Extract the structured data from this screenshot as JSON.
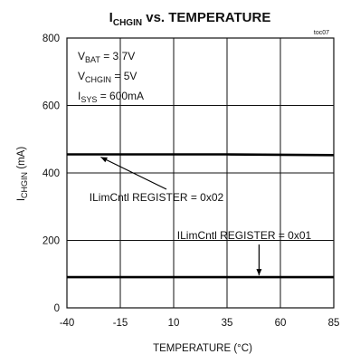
{
  "chart_data": {
    "type": "line",
    "title": {
      "main": "I",
      "sub": "CHGIN",
      "rest": " vs. TEMPERATURE"
    },
    "figure_code": "toc07",
    "xlabel": "TEMPERATURE (°C)",
    "ylabel": {
      "main": "I",
      "sub": "CHGIN",
      "rest": " (mA)"
    },
    "xlim": [
      -40,
      85
    ],
    "ylim": [
      0,
      800
    ],
    "x_ticks": [
      -40,
      -15,
      10,
      35,
      60,
      85
    ],
    "y_ticks": [
      0,
      200,
      400,
      600,
      800
    ],
    "x_tick_labels": [
      "-40",
      "-15",
      "10",
      "35",
      "60",
      "85"
    ],
    "y_tick_labels": [
      "0",
      "200",
      "400",
      "600",
      "800"
    ],
    "grid": true,
    "conditions": [
      {
        "main": "V",
        "sub": "BAT",
        "rest": " = 3.7V"
      },
      {
        "main": "V",
        "sub": "CHGIN",
        "rest": " = 5V"
      },
      {
        "main": "I",
        "sub": "SYS",
        "rest": " = 600mA"
      }
    ],
    "series": [
      {
        "name": "ILimCntl REGISTER = 0x02",
        "x": [
          -40,
          -15,
          10,
          35,
          60,
          85
        ],
        "y": [
          455,
          455,
          455,
          455,
          454,
          453
        ]
      },
      {
        "name": "ILimCntl REGISTER = 0x01",
        "x": [
          -40,
          -15,
          10,
          35,
          60,
          85
        ],
        "y": [
          91,
          91,
          91,
          91,
          91,
          91
        ]
      }
    ],
    "annotations": [
      {
        "text": "ILimCntl REGISTER = 0x02",
        "series": 0,
        "at_x": -25
      },
      {
        "text": "ILimCntl REGISTER = 0x01",
        "series": 1,
        "at_x": 50
      }
    ]
  }
}
